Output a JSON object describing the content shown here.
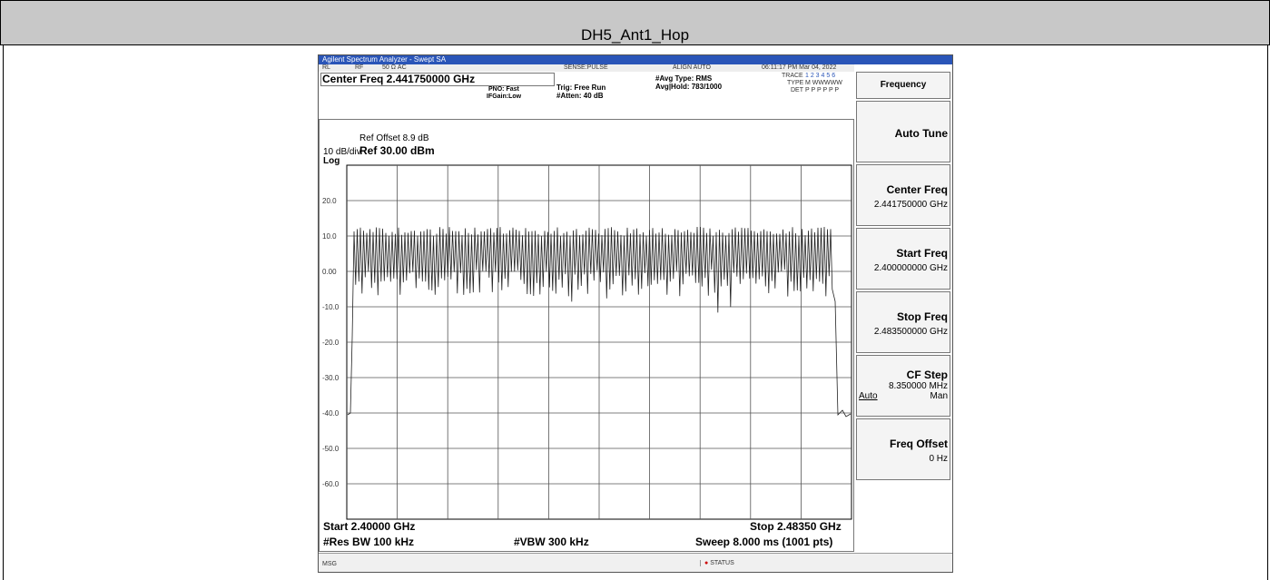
{
  "header": {
    "title": "DH5_Ant1_Hop"
  },
  "analyzer": {
    "window_title": "Agilent Spectrum Analyzer - Swept SA",
    "status_bar": [
      "RL",
      "RF",
      "50 Ω  AC",
      "SENSE:PULSE",
      "ALIGN AUTO",
      "06:11:17 PM Mar 04, 2022"
    ],
    "center_freq": "Center Freq 2.441750000 GHz",
    "pno": "PNO: Fast",
    "if_gain": "IFGain:Low",
    "trig": "Trig: Free Run",
    "atten": "#Atten: 40 dB",
    "avg_type": "#Avg Type: RMS",
    "avg_hold": "Avg|Hold: 783/1000",
    "trace_label": "TRACE",
    "trace_nums": "1 2 3 4 5 6",
    "type_label": "TYPE",
    "type_value": "M WWWWW",
    "det_label": "DET",
    "det_value": "P P P P P P",
    "ref_offset": "Ref Offset 8.9 dB",
    "scale": "10 dB/div",
    "ref_level": "Ref 30.00 dBm",
    "scale_type": "Log",
    "y_labels": [
      "20.0",
      "10.0",
      "0.00",
      "-10.0",
      "-20.0",
      "-30.0",
      "-40.0",
      "-50.0",
      "-60.0"
    ],
    "start": "Start 2.40000 GHz",
    "stop": "Stop 2.48350 GHz",
    "rbw": "#Res BW 100 kHz",
    "vbw": "#VBW 300 kHz",
    "sweep": "Sweep  8.000 ms (1001 pts)",
    "msg": "MSG",
    "status": "STATUS"
  },
  "softkeys": {
    "menu": "Frequency",
    "keys": [
      {
        "label": "Auto Tune"
      },
      {
        "label": "Center Freq",
        "value": "2.441750000 GHz"
      },
      {
        "label": "Start Freq",
        "value": "2.400000000 GHz"
      },
      {
        "label": "Stop Freq",
        "value": "2.483500000 GHz"
      },
      {
        "label": "CF Step",
        "value": "8.350000 MHz",
        "options": [
          "Auto",
          "Man"
        ]
      },
      {
        "label": "Freq Offset",
        "value": "0 Hz"
      }
    ]
  }
}
